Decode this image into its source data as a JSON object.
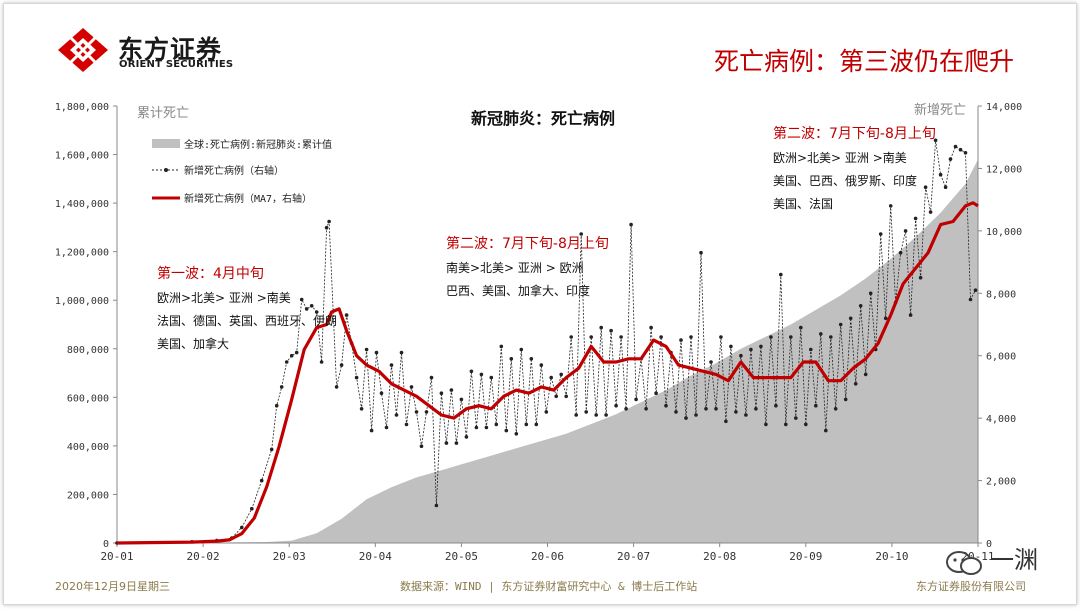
{
  "header": {
    "logo_cn": "东方证券",
    "logo_en": "ORIENT SECURITIES",
    "title": "死亡病例：第三波仍在爬升"
  },
  "footer": {
    "date": "2020年12月9日星期三",
    "source": "数据来源：WIND | 东方证券财富研究中心 & 博士后工作站",
    "company": "东方证券股份有限公司"
  },
  "watermark": {
    "text": "一渊"
  },
  "colors": {
    "accent": "#c00000",
    "area": "#c0c0c0",
    "dots": "#222222",
    "footer": "#8a7a4a"
  },
  "chart_data": {
    "type": "area",
    "title": "新冠肺炎：死亡病例",
    "left_axis_label": "累计死亡",
    "right_axis_label": "新增死亡",
    "left_ylim": [
      0,
      1800000
    ],
    "right_ylim": [
      0,
      14000
    ],
    "left_ticks": [
      "0",
      "200,000",
      "400,000",
      "600,000",
      "800,000",
      "1,000,000",
      "1,200,000",
      "1,400,000",
      "1,600,000",
      "1,800,000"
    ],
    "right_ticks": [
      "0",
      "2,000",
      "4,000",
      "6,000",
      "8,000",
      "10,000",
      "12,000",
      "14,000"
    ],
    "x_ticks": [
      "20-01",
      "20-02",
      "20-03",
      "20-04",
      "20-05",
      "20-06",
      "20-07",
      "20-08",
      "20-09",
      "20-10",
      "20-11"
    ],
    "legend": [
      "全球:死亡病例:新冠肺炎:累计值",
      "新增死亡病例（右轴）",
      "新增死亡病例（MA7，右轴）"
    ],
    "series": [
      {
        "name": "全球:死亡病例:新冠肺炎:累计值",
        "axis": "left",
        "style": "area",
        "points": [
          [
            0,
            0
          ],
          [
            30,
            300
          ],
          [
            40,
            2000
          ],
          [
            50,
            3000
          ],
          [
            60,
            4000
          ],
          [
            70,
            10000
          ],
          [
            80,
            40000
          ],
          [
            90,
            100000
          ],
          [
            100,
            180000
          ],
          [
            110,
            230000
          ],
          [
            120,
            270000
          ],
          [
            130,
            300000
          ],
          [
            140,
            330000
          ],
          [
            150,
            360000
          ],
          [
            160,
            390000
          ],
          [
            170,
            420000
          ],
          [
            180,
            450000
          ],
          [
            190,
            490000
          ],
          [
            200,
            530000
          ],
          [
            210,
            580000
          ],
          [
            220,
            630000
          ],
          [
            230,
            690000
          ],
          [
            240,
            740000
          ],
          [
            250,
            800000
          ],
          [
            260,
            850000
          ],
          [
            270,
            900000
          ],
          [
            280,
            960000
          ],
          [
            290,
            1020000
          ],
          [
            300,
            1090000
          ],
          [
            310,
            1170000
          ],
          [
            320,
            1260000
          ],
          [
            330,
            1360000
          ],
          [
            340,
            1480000
          ],
          [
            345,
            1580000
          ]
        ]
      },
      {
        "name": "新增死亡病例（MA7，右轴）",
        "axis": "right",
        "style": "line",
        "points": [
          [
            0,
            0
          ],
          [
            30,
            30
          ],
          [
            40,
            60
          ],
          [
            45,
            100
          ],
          [
            50,
            300
          ],
          [
            55,
            800
          ],
          [
            60,
            1800
          ],
          [
            65,
            3100
          ],
          [
            70,
            4600
          ],
          [
            75,
            6200
          ],
          [
            80,
            6900
          ],
          [
            84,
            7000
          ],
          [
            86,
            7400
          ],
          [
            89,
            7500
          ],
          [
            92,
            6800
          ],
          [
            96,
            6000
          ],
          [
            100,
            5700
          ],
          [
            105,
            5500
          ],
          [
            110,
            5100
          ],
          [
            115,
            4900
          ],
          [
            120,
            4700
          ],
          [
            125,
            4400
          ],
          [
            130,
            4100
          ],
          [
            135,
            4000
          ],
          [
            140,
            4300
          ],
          [
            145,
            4400
          ],
          [
            150,
            4300
          ],
          [
            155,
            4700
          ],
          [
            160,
            4900
          ],
          [
            165,
            4800
          ],
          [
            170,
            5000
          ],
          [
            175,
            4900
          ],
          [
            180,
            5300
          ],
          [
            185,
            5600
          ],
          [
            190,
            6300
          ],
          [
            195,
            5800
          ],
          [
            200,
            5800
          ],
          [
            205,
            5900
          ],
          [
            210,
            5900
          ],
          [
            215,
            6500
          ],
          [
            220,
            6300
          ],
          [
            225,
            5700
          ],
          [
            230,
            5600
          ],
          [
            235,
            5500
          ],
          [
            240,
            5400
          ],
          [
            245,
            5200
          ],
          [
            250,
            5800
          ],
          [
            255,
            5300
          ],
          [
            260,
            5300
          ],
          [
            265,
            5300
          ],
          [
            270,
            5300
          ],
          [
            275,
            5800
          ],
          [
            280,
            5800
          ],
          [
            285,
            5200
          ],
          [
            290,
            5200
          ],
          [
            295,
            5600
          ],
          [
            300,
            5900
          ],
          [
            305,
            6400
          ],
          [
            310,
            7300
          ],
          [
            315,
            8300
          ],
          [
            320,
            8800
          ],
          [
            325,
            9300
          ],
          [
            330,
            10200
          ],
          [
            335,
            10300
          ],
          [
            340,
            10800
          ],
          [
            343,
            10900
          ],
          [
            345,
            10800
          ]
        ]
      },
      {
        "name": "新增死亡病例（右轴）",
        "axis": "right",
        "style": "dotted-markers",
        "points": [
          [
            0,
            0
          ],
          [
            30,
            40
          ],
          [
            40,
            80
          ],
          [
            46,
            160
          ],
          [
            50,
            500
          ],
          [
            54,
            1100
          ],
          [
            58,
            2000
          ],
          [
            62,
            3000
          ],
          [
            64,
            4400
          ],
          [
            66,
            5000
          ],
          [
            68,
            5800
          ],
          [
            70,
            6000
          ],
          [
            72,
            6100
          ],
          [
            74,
            7800
          ],
          [
            76,
            7500
          ],
          [
            78,
            7600
          ],
          [
            80,
            7400
          ],
          [
            82,
            5800
          ],
          [
            84,
            10100
          ],
          [
            85,
            10300
          ],
          [
            88,
            5000
          ],
          [
            90,
            5700
          ],
          [
            92,
            7300
          ],
          [
            94,
            6400
          ],
          [
            96,
            5300
          ],
          [
            98,
            4300
          ],
          [
            100,
            6200
          ],
          [
            102,
            3600
          ],
          [
            104,
            6100
          ],
          [
            106,
            4800
          ],
          [
            108,
            3700
          ],
          [
            110,
            5700
          ],
          [
            112,
            4100
          ],
          [
            114,
            6100
          ],
          [
            116,
            3800
          ],
          [
            118,
            5000
          ],
          [
            120,
            4200
          ],
          [
            122,
            3100
          ],
          [
            124,
            4200
          ],
          [
            126,
            5300
          ],
          [
            128,
            1200
          ],
          [
            130,
            4800
          ],
          [
            132,
            3200
          ],
          [
            134,
            4900
          ],
          [
            136,
            3200
          ],
          [
            138,
            4600
          ],
          [
            140,
            3400
          ],
          [
            142,
            5500
          ],
          [
            144,
            3700
          ],
          [
            146,
            5400
          ],
          [
            148,
            3700
          ],
          [
            150,
            5300
          ],
          [
            152,
            3800
          ],
          [
            154,
            6300
          ],
          [
            156,
            3600
          ],
          [
            158,
            5900
          ],
          [
            160,
            3500
          ],
          [
            162,
            6200
          ],
          [
            164,
            3800
          ],
          [
            166,
            5900
          ],
          [
            168,
            3800
          ],
          [
            170,
            5700
          ],
          [
            172,
            4200
          ],
          [
            174,
            5300
          ],
          [
            176,
            4700
          ],
          [
            178,
            5400
          ],
          [
            180,
            4700
          ],
          [
            182,
            6600
          ],
          [
            184,
            4100
          ],
          [
            186,
            9900
          ],
          [
            188,
            4200
          ],
          [
            190,
            6600
          ],
          [
            192,
            4100
          ],
          [
            194,
            6900
          ],
          [
            196,
            4100
          ],
          [
            198,
            6800
          ],
          [
            200,
            4400
          ],
          [
            202,
            6600
          ],
          [
            204,
            4300
          ],
          [
            206,
            10200
          ],
          [
            208,
            4600
          ],
          [
            210,
            5900
          ],
          [
            212,
            4300
          ],
          [
            214,
            6900
          ],
          [
            216,
            4800
          ],
          [
            218,
            6600
          ],
          [
            220,
            4400
          ],
          [
            222,
            6100
          ],
          [
            224,
            4200
          ],
          [
            226,
            6500
          ],
          [
            228,
            4000
          ],
          [
            230,
            6600
          ],
          [
            232,
            4100
          ],
          [
            234,
            9300
          ],
          [
            236,
            4300
          ],
          [
            238,
            5800
          ],
          [
            240,
            4300
          ],
          [
            242,
            6600
          ],
          [
            244,
            3900
          ],
          [
            246,
            6300
          ],
          [
            248,
            4200
          ],
          [
            250,
            6000
          ],
          [
            252,
            4100
          ],
          [
            254,
            6200
          ],
          [
            256,
            4300
          ],
          [
            258,
            6300
          ],
          [
            260,
            3800
          ],
          [
            262,
            6600
          ],
          [
            264,
            4400
          ],
          [
            266,
            8600
          ],
          [
            268,
            3800
          ],
          [
            270,
            6600
          ],
          [
            272,
            4000
          ],
          [
            274,
            6900
          ],
          [
            276,
            3800
          ],
          [
            278,
            6200
          ],
          [
            280,
            4400
          ],
          [
            282,
            6700
          ],
          [
            284,
            3600
          ],
          [
            286,
            6600
          ],
          [
            288,
            4300
          ],
          [
            290,
            7000
          ],
          [
            292,
            4600
          ],
          [
            294,
            7200
          ],
          [
            296,
            5100
          ],
          [
            298,
            7600
          ],
          [
            300,
            5400
          ],
          [
            302,
            8000
          ],
          [
            304,
            6200
          ],
          [
            306,
            9900
          ],
          [
            308,
            7200
          ],
          [
            310,
            10800
          ],
          [
            312,
            7700
          ],
          [
            314,
            9300
          ],
          [
            316,
            10000
          ],
          [
            318,
            7300
          ],
          [
            320,
            10400
          ],
          [
            322,
            8500
          ],
          [
            324,
            11400
          ],
          [
            326,
            10600
          ],
          [
            328,
            12900
          ],
          [
            330,
            11800
          ],
          [
            332,
            11400
          ],
          [
            334,
            12300
          ],
          [
            336,
            12700
          ],
          [
            338,
            12600
          ],
          [
            340,
            12500
          ],
          [
            342,
            7800
          ],
          [
            344,
            8100
          ]
        ]
      }
    ],
    "annotations": [
      {
        "title": "第一波：4月中旬",
        "lines": [
          "欧洲>北美> 亚洲 >南美",
          "法国、德国、英国、西班牙、伊朗",
          "美国、加拿大"
        ]
      },
      {
        "title": "第二波：7月下旬-8月上旬",
        "lines": [
          "南美>北美> 亚洲 > 欧洲",
          "巴西、美国、加拿大、印度"
        ]
      },
      {
        "title": "第二波：7月下旬-8月上旬",
        "lines": [
          "欧洲>北美> 亚洲 >南美",
          "美国、巴西、俄罗斯、印度",
          "美国、法国"
        ]
      }
    ]
  }
}
